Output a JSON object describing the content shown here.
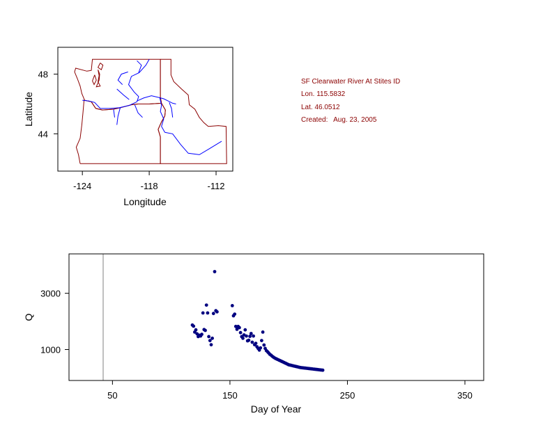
{
  "colors": {
    "border": "#8b0000",
    "river": "#0000ff",
    "points": "#000080",
    "info_text": "#8b0000",
    "axis": "#000000",
    "vline": "#808080"
  },
  "station_info": {
    "name": "SF Clearwater River At Stites ID",
    "lon": "Lon. 115.5832",
    "lat": "Lat. 46.0512",
    "created": "Created:   Aug. 23, 2005"
  },
  "chart_data": [
    {
      "type": "map",
      "xlabel": "Longitude",
      "ylabel": "Latitude",
      "xlim": [
        -126.2,
        -110.5
      ],
      "ylim": [
        41.5,
        49.8
      ],
      "xticks": [
        "-124",
        "-118",
        "-112"
      ],
      "xtick_values": [
        -124,
        -118,
        -112
      ],
      "yticks": [
        "44",
        "48"
      ],
      "ytick_values": [
        44,
        48
      ],
      "state_borders": [
        [
          [
            -123.8,
            46.25
          ],
          [
            -124.05,
            46.7
          ],
          [
            -124.2,
            47.2
          ],
          [
            -124.45,
            47.7
          ],
          [
            -124.7,
            48.15
          ],
          [
            -124.6,
            48.4
          ],
          [
            -123.6,
            48.2
          ],
          [
            -123.2,
            48.25
          ],
          [
            -123.1,
            49.0
          ],
          [
            -117.0,
            49.0
          ],
          [
            -117.0,
            46.45
          ],
          [
            -116.9,
            46.05
          ],
          [
            -118.0,
            46.0
          ],
          [
            -119.0,
            46.0
          ],
          [
            -119.6,
            45.95
          ],
          [
            -120.6,
            45.75
          ],
          [
            -121.2,
            45.65
          ],
          [
            -122.2,
            45.6
          ],
          [
            -122.8,
            45.7
          ],
          [
            -123.2,
            46.15
          ],
          [
            -123.8,
            46.25
          ]
        ],
        [
          [
            -124.2,
            42.0
          ],
          [
            -124.35,
            42.6
          ],
          [
            -124.55,
            43.1
          ],
          [
            -124.2,
            43.7
          ],
          [
            -124.05,
            44.6
          ],
          [
            -123.95,
            45.4
          ],
          [
            -123.85,
            46.25
          ],
          [
            -123.2,
            46.15
          ],
          [
            -122.8,
            45.7
          ],
          [
            -122.2,
            45.6
          ],
          [
            -121.2,
            45.65
          ],
          [
            -120.6,
            45.75
          ],
          [
            -119.6,
            45.95
          ],
          [
            -119.0,
            46.0
          ],
          [
            -118.0,
            46.0
          ],
          [
            -116.9,
            46.05
          ],
          [
            -116.55,
            45.6
          ],
          [
            -116.6,
            45.2
          ],
          [
            -116.9,
            44.8
          ],
          [
            -117.2,
            44.3
          ],
          [
            -117.0,
            43.8
          ],
          [
            -117.0,
            42.0
          ],
          [
            -124.2,
            42.0
          ]
        ],
        [
          [
            -117.0,
            49.0
          ],
          [
            -116.05,
            49.0
          ],
          [
            -116.05,
            47.95
          ],
          [
            -115.8,
            47.5
          ],
          [
            -115.1,
            47.0
          ],
          [
            -114.5,
            46.6
          ],
          [
            -114.4,
            45.95
          ],
          [
            -113.9,
            45.65
          ],
          [
            -113.5,
            45.1
          ],
          [
            -113.1,
            44.75
          ],
          [
            -112.7,
            44.5
          ],
          [
            -111.8,
            44.55
          ],
          [
            -111.1,
            44.5
          ],
          [
            -111.05,
            42.0
          ],
          [
            -117.0,
            42.0
          ],
          [
            -117.0,
            43.8
          ],
          [
            -117.2,
            44.3
          ],
          [
            -116.9,
            44.8
          ],
          [
            -116.6,
            45.2
          ],
          [
            -116.55,
            45.6
          ],
          [
            -116.9,
            46.05
          ],
          [
            -117.0,
            46.45
          ],
          [
            -117.0,
            49.0
          ]
        ],
        [
          [
            -122.6,
            48.3
          ],
          [
            -122.5,
            47.9
          ],
          [
            -122.6,
            47.5
          ],
          [
            -122.4,
            47.2
          ],
          [
            -122.75,
            47.15
          ],
          [
            -122.5,
            47.6
          ],
          [
            -122.45,
            48.0
          ],
          [
            -122.6,
            48.3
          ]
        ],
        [
          [
            -122.9,
            47.95
          ],
          [
            -122.75,
            47.6
          ],
          [
            -122.95,
            47.3
          ],
          [
            -123.1,
            47.55
          ],
          [
            -122.9,
            47.95
          ]
        ],
        [
          [
            -122.4,
            48.75
          ],
          [
            -122.6,
            48.45
          ],
          [
            -122.3,
            48.3
          ],
          [
            -122.15,
            48.6
          ],
          [
            -122.4,
            48.75
          ]
        ]
      ],
      "rivers": [
        [
          [
            -124.0,
            46.25
          ],
          [
            -123.4,
            46.2
          ],
          [
            -122.9,
            46.1
          ],
          [
            -122.4,
            45.7
          ],
          [
            -121.5,
            45.7
          ],
          [
            -120.7,
            45.75
          ],
          [
            -119.8,
            45.9
          ],
          [
            -119.1,
            46.15
          ],
          [
            -118.95,
            46.5
          ],
          [
            -119.35,
            46.8
          ],
          [
            -119.85,
            47.3
          ],
          [
            -119.6,
            47.85
          ],
          [
            -118.9,
            48.1
          ],
          [
            -118.3,
            48.6
          ],
          [
            -118.0,
            49.0
          ]
        ],
        [
          [
            -119.1,
            46.2
          ],
          [
            -118.5,
            46.4
          ],
          [
            -117.8,
            46.55
          ],
          [
            -117.05,
            46.42
          ],
          [
            -116.7,
            46.35
          ],
          [
            -116.3,
            46.2
          ],
          [
            -115.9,
            46.05
          ],
          [
            -115.6,
            46.0
          ]
        ],
        [
          [
            -117.05,
            46.42
          ],
          [
            -116.9,
            45.9
          ],
          [
            -117.0,
            45.5
          ],
          [
            -116.7,
            45.0
          ],
          [
            -116.9,
            44.5
          ],
          [
            -116.6,
            44.1
          ]
        ],
        [
          [
            -116.6,
            44.1
          ],
          [
            -115.9,
            44.0
          ],
          [
            -115.2,
            43.3
          ],
          [
            -114.5,
            42.7
          ],
          [
            -113.5,
            42.6
          ],
          [
            -112.6,
            43.0
          ],
          [
            -111.5,
            43.5
          ]
        ],
        [
          [
            -120.4,
            47.3
          ],
          [
            -120.8,
            47.6
          ],
          [
            -120.5,
            48.0
          ],
          [
            -119.9,
            48.15
          ]
        ],
        [
          [
            -119.8,
            46.3
          ],
          [
            -120.3,
            46.6
          ],
          [
            -120.9,
            47.0
          ]
        ],
        [
          [
            -118.95,
            48.1
          ],
          [
            -118.7,
            48.6
          ],
          [
            -119.1,
            48.9
          ]
        ],
        [
          [
            -116.2,
            46.1
          ],
          [
            -116.0,
            45.7
          ],
          [
            -115.9,
            45.1
          ]
        ],
        [
          [
            -120.6,
            45.75
          ],
          [
            -120.8,
            45.2
          ],
          [
            -120.9,
            44.6
          ]
        ],
        [
          [
            -121.2,
            45.65
          ],
          [
            -121.1,
            45.1
          ]
        ],
        [
          [
            -119.3,
            45.95
          ],
          [
            -119.0,
            45.4
          ],
          [
            -118.6,
            45.1
          ]
        ]
      ]
    },
    {
      "type": "scatter",
      "xlabel": "Day of Year",
      "ylabel": "Q",
      "xlim": [
        13,
        366
      ],
      "ylim": [
        -100,
        4400
      ],
      "xticks": [
        "50",
        "150",
        "250",
        "350"
      ],
      "xtick_values": [
        50,
        150,
        250,
        350
      ],
      "yticks": [
        "1000",
        "3000"
      ],
      "ytick_values": [
        1000,
        3000
      ],
      "vline_x": 50,
      "points": [
        [
          118,
          1870
        ],
        [
          119,
          1830
        ],
        [
          120,
          1620
        ],
        [
          121,
          1700
        ],
        [
          122,
          1560
        ],
        [
          123,
          1460
        ],
        [
          124,
          1510
        ],
        [
          125,
          1480
        ],
        [
          126,
          1540
        ],
        [
          127,
          2300
        ],
        [
          128,
          1710
        ],
        [
          129,
          1680
        ],
        [
          130,
          2580
        ],
        [
          131,
          2300
        ],
        [
          132,
          1460
        ],
        [
          133,
          1320
        ],
        [
          134,
          1170
        ],
        [
          135,
          1400
        ],
        [
          136,
          2280
        ],
        [
          137,
          3770
        ],
        [
          138,
          2380
        ],
        [
          139,
          2340
        ],
        [
          152,
          2560
        ],
        [
          153,
          2200
        ],
        [
          154,
          2260
        ],
        [
          155,
          1820
        ],
        [
          156,
          1720
        ],
        [
          157,
          1820
        ],
        [
          158,
          1780
        ],
        [
          159,
          1600
        ],
        [
          160,
          1460
        ],
        [
          161,
          1400
        ],
        [
          162,
          1520
        ],
        [
          163,
          1700
        ],
        [
          164,
          1480
        ],
        [
          165,
          1310
        ],
        [
          166,
          1330
        ],
        [
          167,
          1470
        ],
        [
          168,
          1570
        ],
        [
          169,
          1260
        ],
        [
          170,
          1480
        ],
        [
          171,
          1170
        ],
        [
          172,
          1220
        ],
        [
          173,
          1100
        ],
        [
          174,
          1040
        ],
        [
          175,
          980
        ],
        [
          176,
          1060
        ],
        [
          177,
          1320
        ],
        [
          178,
          1620
        ],
        [
          179,
          1160
        ],
        [
          180,
          1040
        ],
        [
          181,
          960
        ],
        [
          182,
          920
        ],
        [
          183,
          880
        ],
        [
          184,
          830
        ],
        [
          185,
          800
        ],
        [
          186,
          760
        ],
        [
          187,
          730
        ],
        [
          188,
          700
        ],
        [
          189,
          680
        ],
        [
          190,
          660
        ],
        [
          191,
          640
        ],
        [
          192,
          620
        ],
        [
          193,
          600
        ],
        [
          194,
          580
        ],
        [
          195,
          560
        ],
        [
          196,
          540
        ],
        [
          197,
          520
        ],
        [
          198,
          500
        ],
        [
          199,
          480
        ],
        [
          200,
          460
        ],
        [
          201,
          450
        ],
        [
          202,
          440
        ],
        [
          203,
          430
        ],
        [
          204,
          420
        ],
        [
          205,
          410
        ],
        [
          206,
          400
        ],
        [
          207,
          390
        ],
        [
          208,
          380
        ],
        [
          209,
          370
        ],
        [
          210,
          360
        ],
        [
          211,
          355
        ],
        [
          212,
          350
        ],
        [
          213,
          345
        ],
        [
          214,
          340
        ],
        [
          215,
          335
        ],
        [
          216,
          330
        ],
        [
          217,
          325
        ],
        [
          218,
          320
        ],
        [
          219,
          315
        ],
        [
          220,
          310
        ],
        [
          221,
          305
        ],
        [
          222,
          300
        ],
        [
          223,
          295
        ],
        [
          224,
          290
        ],
        [
          225,
          285
        ],
        [
          226,
          280
        ],
        [
          227,
          275
        ],
        [
          228,
          270
        ],
        [
          229,
          265
        ]
      ]
    }
  ]
}
